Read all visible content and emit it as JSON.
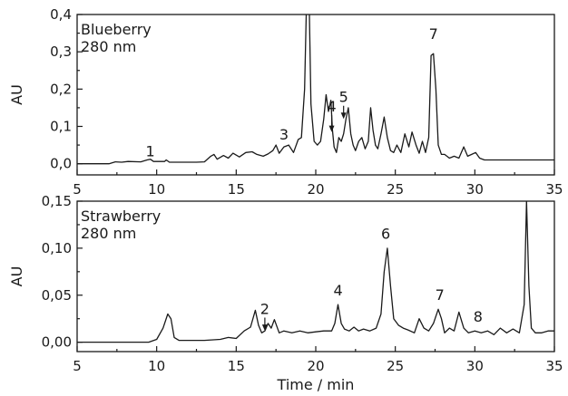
{
  "chart_data": [
    {
      "type": "line",
      "panel_label": [
        "Blueberry",
        "280 nm"
      ],
      "ylabel": "AU",
      "xlabel": "",
      "xlim": [
        5,
        35
      ],
      "ylim": [
        -0.03,
        0.4
      ],
      "x_ticks": [
        5,
        10,
        15,
        20,
        25,
        30,
        35
      ],
      "x_tick_labels": [
        "5",
        "10",
        "15",
        "20",
        "25",
        "30",
        "35"
      ],
      "y_ticks": [
        0.0,
        0.1,
        0.2,
        0.3,
        0.4
      ],
      "y_tick_labels": [
        "0,0",
        "0,1",
        "0,2",
        "0,3",
        "0,4"
      ],
      "series": [
        {
          "x": [
            5.0,
            6.0,
            7.0,
            7.4,
            7.8,
            8.2,
            9.0,
            9.4,
            9.6,
            9.8,
            10.5,
            10.6,
            10.8,
            11.5,
            12.5,
            13.0,
            13.4,
            13.6,
            13.8,
            14.2,
            14.5,
            14.8,
            15.2,
            15.6,
            16.0,
            16.3,
            16.7,
            17.0,
            17.3,
            17.5,
            17.7,
            18.0,
            18.3,
            18.6,
            18.9,
            19.1,
            19.3,
            19.4,
            19.5,
            19.6,
            19.7,
            19.9,
            20.1,
            20.3,
            20.5,
            20.65,
            20.8,
            20.95,
            21.05,
            21.15,
            21.3,
            21.45,
            21.6,
            21.75,
            21.9,
            22.05,
            22.2,
            22.35,
            22.5,
            22.7,
            22.9,
            23.1,
            23.3,
            23.45,
            23.6,
            23.75,
            23.9,
            24.1,
            24.3,
            24.5,
            24.7,
            24.9,
            25.1,
            25.35,
            25.6,
            25.85,
            26.05,
            26.3,
            26.5,
            26.7,
            26.9,
            27.1,
            27.25,
            27.4,
            27.55,
            27.7,
            27.9,
            28.1,
            28.4,
            28.7,
            29.0,
            29.3,
            29.55,
            29.8,
            30.05,
            30.3,
            30.6,
            31.0,
            31.5,
            32.0,
            33.0,
            34.0,
            35.0
          ],
          "y": [
            0.0,
            0.0,
            0.0,
            0.005,
            0.004,
            0.006,
            0.005,
            0.01,
            0.012,
            0.006,
            0.006,
            0.01,
            0.004,
            0.004,
            0.004,
            0.005,
            0.02,
            0.025,
            0.012,
            0.022,
            0.015,
            0.028,
            0.018,
            0.03,
            0.032,
            0.025,
            0.02,
            0.026,
            0.035,
            0.05,
            0.028,
            0.045,
            0.05,
            0.03,
            0.065,
            0.07,
            0.2,
            0.4,
            0.42,
            0.4,
            0.16,
            0.06,
            0.05,
            0.06,
            0.12,
            0.185,
            0.14,
            0.17,
            0.09,
            0.045,
            0.03,
            0.07,
            0.06,
            0.08,
            0.12,
            0.15,
            0.08,
            0.05,
            0.035,
            0.06,
            0.07,
            0.04,
            0.06,
            0.15,
            0.09,
            0.05,
            0.04,
            0.08,
            0.125,
            0.07,
            0.035,
            0.03,
            0.05,
            0.03,
            0.08,
            0.045,
            0.085,
            0.05,
            0.028,
            0.06,
            0.03,
            0.07,
            0.29,
            0.295,
            0.2,
            0.05,
            0.025,
            0.025,
            0.015,
            0.02,
            0.015,
            0.045,
            0.02,
            0.025,
            0.03,
            0.015,
            0.01,
            0.01,
            0.01,
            0.01,
            0.01,
            0.01,
            0.01
          ]
        }
      ],
      "annotations": [
        {
          "text": "1",
          "x": 9.6,
          "y": 0.02
        },
        {
          "text": "3",
          "x": 18.0,
          "y": 0.065
        },
        {
          "text": "4",
          "x": 21.0,
          "y": 0.14
        },
        {
          "text": "5",
          "x": 21.75,
          "y": 0.165
        },
        {
          "text": "7",
          "x": 27.4,
          "y": 0.335
        }
      ]
    },
    {
      "type": "line",
      "panel_label": [
        "Strawberry",
        "280 nm"
      ],
      "ylabel": "AU",
      "xlabel": "Time / min",
      "xlim": [
        5,
        35
      ],
      "ylim": [
        -0.01,
        0.15
      ],
      "x_ticks": [
        5,
        10,
        15,
        20,
        25,
        30,
        35
      ],
      "x_tick_labels": [
        "5",
        "10",
        "15",
        "20",
        "25",
        "30",
        "35"
      ],
      "y_ticks": [
        0.0,
        0.05,
        0.1,
        0.15
      ],
      "y_tick_labels": [
        "0,00",
        "0,05",
        "0,10",
        "0,15"
      ],
      "series": [
        {
          "x": [
            5.0,
            6.0,
            7.0,
            8.0,
            9.0,
            9.5,
            10.0,
            10.4,
            10.7,
            10.9,
            11.1,
            11.4,
            12.0,
            13.0,
            14.0,
            14.5,
            15.0,
            15.5,
            15.9,
            16.2,
            16.4,
            16.6,
            16.8,
            17.0,
            17.2,
            17.4,
            17.7,
            18.0,
            18.5,
            19.0,
            19.5,
            20.0,
            20.5,
            21.0,
            21.2,
            21.4,
            21.6,
            21.8,
            22.1,
            22.4,
            22.7,
            23.0,
            23.4,
            23.8,
            24.1,
            24.3,
            24.5,
            24.7,
            24.9,
            25.2,
            25.5,
            25.8,
            26.2,
            26.5,
            26.8,
            27.1,
            27.4,
            27.7,
            27.9,
            28.1,
            28.4,
            28.7,
            29.0,
            29.3,
            29.6,
            30.0,
            30.4,
            30.8,
            31.2,
            31.6,
            32.0,
            32.4,
            32.8,
            33.1,
            33.25,
            33.4,
            33.55,
            33.8,
            34.2,
            34.6,
            35.0
          ],
          "y": [
            0.0,
            0.0,
            0.0,
            0.0,
            0.0,
            0.0,
            0.003,
            0.015,
            0.03,
            0.025,
            0.005,
            0.002,
            0.002,
            0.002,
            0.003,
            0.005,
            0.004,
            0.012,
            0.016,
            0.034,
            0.018,
            0.01,
            0.012,
            0.02,
            0.015,
            0.024,
            0.01,
            0.012,
            0.01,
            0.012,
            0.01,
            0.011,
            0.012,
            0.012,
            0.02,
            0.04,
            0.02,
            0.014,
            0.012,
            0.016,
            0.012,
            0.014,
            0.012,
            0.015,
            0.03,
            0.075,
            0.1,
            0.06,
            0.025,
            0.018,
            0.015,
            0.013,
            0.01,
            0.025,
            0.015,
            0.012,
            0.02,
            0.035,
            0.025,
            0.01,
            0.015,
            0.012,
            0.032,
            0.015,
            0.01,
            0.012,
            0.01,
            0.012,
            0.008,
            0.015,
            0.01,
            0.014,
            0.01,
            0.04,
            0.15,
            0.06,
            0.015,
            0.01,
            0.01,
            0.012,
            0.012
          ]
        }
      ],
      "annotations": [
        {
          "text": "2",
          "x": 16.8,
          "y": 0.03
        },
        {
          "text": "4",
          "x": 21.4,
          "y": 0.05
        },
        {
          "text": "6",
          "x": 24.4,
          "y": 0.11
        },
        {
          "text": "7",
          "x": 27.8,
          "y": 0.045
        },
        {
          "text": "8",
          "x": 30.2,
          "y": 0.022
        }
      ]
    }
  ]
}
